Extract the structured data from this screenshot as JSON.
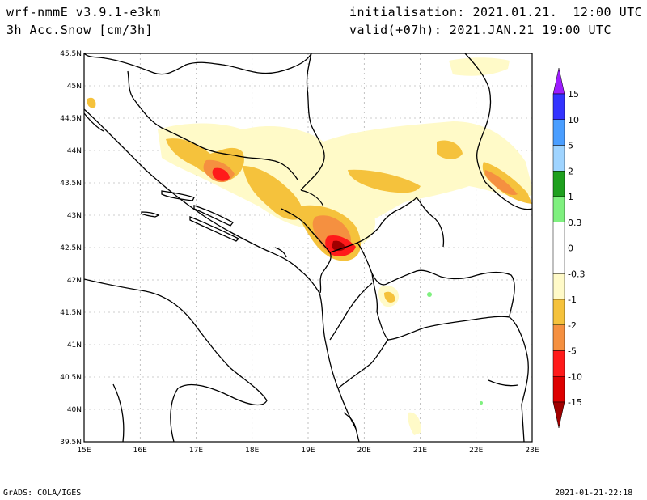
{
  "header": {
    "model": "wrf-nmmE_v3.9.1-e3km",
    "variable": "3h Acc.Snow [cm/3h]",
    "initialisation": "initialisation: 2021.01.21.  12:00 UTC",
    "valid": "valid(+07h): 2021.JAN.21 19:00 UTC"
  },
  "footer": {
    "credit": "GrADS: COLA/IGES",
    "timestamp": "2021-01-21-22:18"
  },
  "map": {
    "lon_labels": [
      "15E",
      "16E",
      "17E",
      "18E",
      "19E",
      "20E",
      "21E",
      "22E",
      "23E"
    ],
    "lat_labels": [
      "45.5N",
      "45N",
      "44.5N",
      "44N",
      "43.5N",
      "43N",
      "42.5N",
      "42N",
      "41.5N",
      "41N",
      "40.5N",
      "40N",
      "39.5N"
    ]
  },
  "colorbar": {
    "labels": [
      "15",
      "10",
      "5",
      "2",
      "1",
      "0.3",
      "0",
      "-0.3",
      "-1",
      "-2",
      "-5",
      "-10",
      "-15"
    ],
    "colors": [
      "#9d1cff",
      "#3333ff",
      "#4a9eff",
      "#9fd4ff",
      "#1ea01e",
      "#7ff07f",
      "#ffffff",
      "#ffffff",
      "#fffac8",
      "#f5c23c",
      "#f59040",
      "#ff1a1a",
      "#dd0000",
      "#a00000"
    ]
  }
}
